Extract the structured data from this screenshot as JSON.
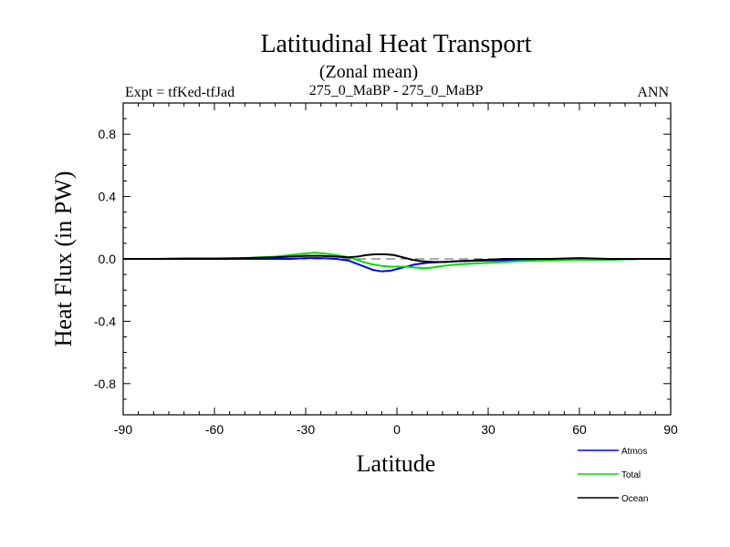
{
  "title": "Latitudinal Heat Transport",
  "subtitle": "(Zonal mean)",
  "left_label": "Expt = tfKed-tfJad",
  "center_label": "275_0_MaBP - 275_0_MaBP",
  "right_label": "ANN",
  "chart_data": {
    "type": "line",
    "xlabel": "Latitude",
    "ylabel": "Heat Flux (in PW)",
    "xlim": [
      -90,
      90
    ],
    "ylim": [
      -1.0,
      1.0
    ],
    "x_ticks": [
      -90,
      -60,
      -30,
      0,
      30,
      60,
      90
    ],
    "x_tick_labels": [
      "-90",
      "-60",
      "-30",
      "0",
      "30",
      "60",
      "90"
    ],
    "y_ticks": [
      -0.8,
      -0.4,
      0.0,
      0.4,
      0.8
    ],
    "y_tick_labels": [
      "-0.8",
      "-0.4",
      "0.0",
      "0.4",
      "0.8"
    ],
    "zero_reference_line": true,
    "grid": false,
    "legend_position": "bottom-right",
    "series": [
      {
        "name": "Atmos",
        "color": "#0000ff",
        "x": [
          -90,
          -75,
          -60,
          -50,
          -40,
          -35,
          -30,
          -25,
          -20,
          -16,
          -12,
          -8,
          -5,
          -2,
          0,
          3,
          6,
          10,
          15,
          20,
          30,
          40,
          50,
          60,
          70,
          80,
          90
        ],
        "y": [
          0.0,
          0.0,
          0.0,
          0.0,
          0.0,
          0.0,
          0.005,
          0.005,
          0.0,
          -0.01,
          -0.04,
          -0.07,
          -0.08,
          -0.075,
          -0.065,
          -0.05,
          -0.035,
          -0.025,
          -0.02,
          -0.015,
          -0.01,
          -0.01,
          -0.005,
          -0.005,
          -0.005,
          0.0,
          0.0
        ]
      },
      {
        "name": "Total",
        "color": "#00dd00",
        "x": [
          -90,
          -80,
          -70,
          -60,
          -50,
          -45,
          -40,
          -35,
          -30,
          -27,
          -24,
          -20,
          -17,
          -14,
          -11,
          -8,
          -5,
          -2,
          0,
          3,
          6,
          9,
          12,
          15,
          20,
          25,
          30,
          40,
          50,
          60,
          70,
          80,
          90
        ],
        "y": [
          0.0,
          0.0,
          0.005,
          0.005,
          0.005,
          0.01,
          0.015,
          0.025,
          0.035,
          0.04,
          0.035,
          0.025,
          0.015,
          0.0,
          -0.02,
          -0.035,
          -0.045,
          -0.05,
          -0.05,
          -0.05,
          -0.055,
          -0.06,
          -0.055,
          -0.045,
          -0.035,
          -0.03,
          -0.025,
          -0.015,
          -0.01,
          -0.005,
          -0.005,
          0.0,
          0.0
        ]
      },
      {
        "name": "Ocean",
        "color": "#000000",
        "x": [
          -90,
          -80,
          -70,
          -60,
          -50,
          -40,
          -35,
          -30,
          -25,
          -20,
          -16,
          -13,
          -10,
          -7,
          -4,
          -1,
          2,
          5,
          8,
          12,
          16,
          20,
          25,
          30,
          35,
          40,
          50,
          60,
          70,
          80,
          90
        ],
        "y": [
          0.0,
          0.0,
          0.0,
          0.0,
          0.005,
          0.01,
          0.015,
          0.02,
          0.02,
          0.015,
          0.01,
          0.015,
          0.025,
          0.03,
          0.03,
          0.025,
          0.01,
          -0.005,
          -0.015,
          -0.02,
          -0.02,
          -0.015,
          -0.01,
          -0.005,
          0.0,
          0.0,
          0.0,
          0.005,
          0.0,
          0.0,
          0.0
        ]
      }
    ]
  }
}
